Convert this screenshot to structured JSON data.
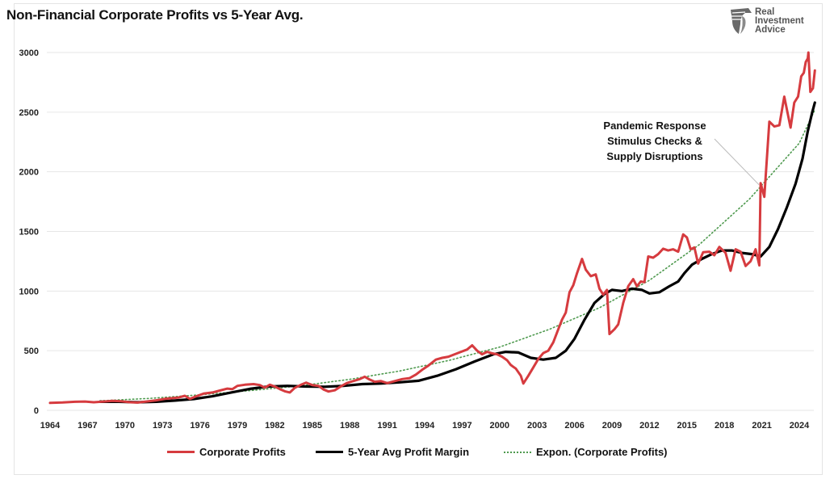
{
  "chart_data": {
    "type": "line",
    "title": "Non-Financial Corporate Profits vs 5-Year Avg.",
    "xlabel": "",
    "ylabel": "",
    "xlim": [
      1963.8,
      2025.4
    ],
    "ylim": [
      0,
      3000
    ],
    "grid": true,
    "legend_position": "bottom",
    "y_ticks": [
      "0",
      "500",
      "1000",
      "1500",
      "2000",
      "2500",
      "3000"
    ],
    "y_tick_values": [
      0,
      500,
      1000,
      1500,
      2000,
      2500,
      3000
    ],
    "x_ticks": [
      "1964",
      "1967",
      "1970",
      "1973",
      "1976",
      "1979",
      "1982",
      "1985",
      "1988",
      "1991",
      "1994",
      "1997",
      "2000",
      "2003",
      "2006",
      "2009",
      "2012",
      "2015",
      "2018",
      "2021",
      "2024"
    ],
    "x_tick_values": [
      1964,
      1967,
      1970,
      1973,
      1976,
      1979,
      1982,
      1985,
      1988,
      1991,
      1994,
      1997,
      2000,
      2003,
      2006,
      2009,
      2012,
      2015,
      2018,
      2021,
      2024
    ],
    "series": [
      {
        "name": "Corporate Profits",
        "color": "#d63b3f",
        "style": "solid",
        "points": [
          [
            1964.0,
            62
          ],
          [
            1965.0,
            66
          ],
          [
            1966.0,
            72
          ],
          [
            1966.8,
            74
          ],
          [
            1967.5,
            68
          ],
          [
            1968.3,
            74
          ],
          [
            1969.0,
            80
          ],
          [
            1969.7,
            76
          ],
          [
            1970.4,
            68
          ],
          [
            1971.0,
            65
          ],
          [
            1971.7,
            74
          ],
          [
            1972.5,
            84
          ],
          [
            1973.2,
            96
          ],
          [
            1973.8,
            102
          ],
          [
            1974.3,
            108
          ],
          [
            1974.8,
            122
          ],
          [
            1975.2,
            96
          ],
          [
            1975.7,
            118
          ],
          [
            1976.3,
            140
          ],
          [
            1977.0,
            150
          ],
          [
            1977.6,
            166
          ],
          [
            1978.2,
            182
          ],
          [
            1978.6,
            178
          ],
          [
            1979.0,
            205
          ],
          [
            1979.6,
            215
          ],
          [
            1980.3,
            220
          ],
          [
            1980.8,
            212
          ],
          [
            1981.2,
            190
          ],
          [
            1981.6,
            215
          ],
          [
            1982.0,
            200
          ],
          [
            1982.4,
            178
          ],
          [
            1982.8,
            160
          ],
          [
            1983.2,
            150
          ],
          [
            1983.6,
            188
          ],
          [
            1984.1,
            215
          ],
          [
            1984.5,
            232
          ],
          [
            1985.0,
            212
          ],
          [
            1985.5,
            205
          ],
          [
            1985.9,
            175
          ],
          [
            1986.3,
            158
          ],
          [
            1986.8,
            168
          ],
          [
            1987.3,
            202
          ],
          [
            1987.8,
            230
          ],
          [
            1988.3,
            246
          ],
          [
            1988.8,
            262
          ],
          [
            1989.2,
            282
          ],
          [
            1989.6,
            258
          ],
          [
            1990.0,
            240
          ],
          [
            1990.5,
            245
          ],
          [
            1991.0,
            228
          ],
          [
            1991.6,
            245
          ],
          [
            1992.2,
            262
          ],
          [
            1992.8,
            270
          ],
          [
            1993.3,
            300
          ],
          [
            1993.8,
            340
          ],
          [
            1994.3,
            375
          ],
          [
            1994.9,
            425
          ],
          [
            1995.4,
            440
          ],
          [
            1995.9,
            450
          ],
          [
            1996.4,
            470
          ],
          [
            1996.9,
            490
          ],
          [
            1997.4,
            510
          ],
          [
            1997.8,
            545
          ],
          [
            1998.2,
            500
          ],
          [
            1998.6,
            470
          ],
          [
            1999.0,
            490
          ],
          [
            1999.4,
            478
          ],
          [
            1999.8,
            470
          ],
          [
            2000.2,
            450
          ],
          [
            2000.6,
            420
          ],
          [
            2000.9,
            380
          ],
          [
            2001.3,
            350
          ],
          [
            2001.7,
            290
          ],
          [
            2001.9,
            225
          ],
          [
            2002.3,
            290
          ],
          [
            2002.7,
            360
          ],
          [
            2003.1,
            430
          ],
          [
            2003.5,
            480
          ],
          [
            2003.9,
            500
          ],
          [
            2004.3,
            570
          ],
          [
            2004.7,
            680
          ],
          [
            2005.0,
            760
          ],
          [
            2005.3,
            820
          ],
          [
            2005.6,
            990
          ],
          [
            2005.9,
            1050
          ],
          [
            2006.2,
            1150
          ],
          [
            2006.6,
            1270
          ],
          [
            2006.9,
            1180
          ],
          [
            2007.3,
            1125
          ],
          [
            2007.7,
            1140
          ],
          [
            2008.0,
            1020
          ],
          [
            2008.3,
            970
          ],
          [
            2008.6,
            1010
          ],
          [
            2008.8,
            640
          ],
          [
            2009.2,
            680
          ],
          [
            2009.5,
            720
          ],
          [
            2009.9,
            900
          ],
          [
            2010.3,
            1040
          ],
          [
            2010.7,
            1100
          ],
          [
            2011.0,
            1040
          ],
          [
            2011.3,
            1080
          ],
          [
            2011.6,
            1075
          ],
          [
            2011.9,
            1290
          ],
          [
            2012.3,
            1280
          ],
          [
            2012.7,
            1310
          ],
          [
            2013.1,
            1355
          ],
          [
            2013.5,
            1340
          ],
          [
            2013.9,
            1350
          ],
          [
            2014.3,
            1330
          ],
          [
            2014.7,
            1475
          ],
          [
            2015.0,
            1450
          ],
          [
            2015.3,
            1350
          ],
          [
            2015.6,
            1365
          ],
          [
            2015.9,
            1230
          ],
          [
            2016.3,
            1325
          ],
          [
            2016.8,
            1330
          ],
          [
            2017.2,
            1300
          ],
          [
            2017.6,
            1370
          ],
          [
            2018.1,
            1320
          ],
          [
            2018.5,
            1170
          ],
          [
            2018.9,
            1350
          ],
          [
            2019.3,
            1330
          ],
          [
            2019.7,
            1210
          ],
          [
            2020.1,
            1250
          ],
          [
            2020.5,
            1350
          ],
          [
            2020.8,
            1215
          ],
          [
            2020.9,
            1905
          ],
          [
            2021.2,
            1790
          ],
          [
            2021.6,
            2420
          ],
          [
            2022.0,
            2380
          ],
          [
            2022.4,
            2390
          ],
          [
            2022.8,
            2630
          ],
          [
            2023.3,
            2370
          ],
          [
            2023.6,
            2580
          ],
          [
            2023.9,
            2630
          ],
          [
            2024.3,
            2800
          ],
          [
            2024.7,
            2830
          ],
          [
            2025.0,
            2920
          ],
          [
            2025.3,
            2950
          ],
          [
            2025.4,
            3000
          ],
          [
            2025.7,
            2670
          ],
          [
            2026.1,
            2700
          ],
          [
            2026.4,
            2850
          ]
        ]
      },
      {
        "name": "5-Year Avg Profit Margin",
        "color": "#000000",
        "style": "solid",
        "points": [
          [
            1968.0,
            72
          ],
          [
            1969.5,
            72
          ],
          [
            1971.0,
            68
          ],
          [
            1972.5,
            72
          ],
          [
            1974.0,
            82
          ],
          [
            1975.5,
            95
          ],
          [
            1977.0,
            118
          ],
          [
            1978.5,
            150
          ],
          [
            1980.0,
            180
          ],
          [
            1981.5,
            200
          ],
          [
            1983.0,
            205
          ],
          [
            1984.5,
            200
          ],
          [
            1986.0,
            198
          ],
          [
            1987.5,
            205
          ],
          [
            1989.0,
            220
          ],
          [
            1990.5,
            225
          ],
          [
            1992.0,
            235
          ],
          [
            1993.5,
            248
          ],
          [
            1995.0,
            290
          ],
          [
            1996.5,
            345
          ],
          [
            1998.0,
            410
          ],
          [
            1999.5,
            470
          ],
          [
            2000.5,
            490
          ],
          [
            2001.5,
            485
          ],
          [
            2002.5,
            440
          ],
          [
            2003.5,
            425
          ],
          [
            2004.5,
            440
          ],
          [
            2005.3,
            500
          ],
          [
            2006.0,
            600
          ],
          [
            2006.8,
            760
          ],
          [
            2007.6,
            900
          ],
          [
            2008.4,
            975
          ],
          [
            2009.0,
            1010
          ],
          [
            2009.8,
            1000
          ],
          [
            2010.6,
            1020
          ],
          [
            2011.4,
            1010
          ],
          [
            2012.0,
            980
          ],
          [
            2012.8,
            990
          ],
          [
            2013.6,
            1040
          ],
          [
            2014.3,
            1080
          ],
          [
            2014.8,
            1150
          ],
          [
            2015.4,
            1220
          ],
          [
            2016.2,
            1270
          ],
          [
            2017.0,
            1310
          ],
          [
            2017.8,
            1340
          ],
          [
            2018.6,
            1340
          ],
          [
            2019.4,
            1320
          ],
          [
            2020.2,
            1310
          ],
          [
            2020.9,
            1290
          ],
          [
            2021.6,
            1370
          ],
          [
            2022.3,
            1520
          ],
          [
            2023.0,
            1700
          ],
          [
            2023.7,
            1900
          ],
          [
            2024.5,
            2110
          ],
          [
            2025.3,
            2340
          ],
          [
            2026.0,
            2500
          ],
          [
            2026.4,
            2580
          ]
        ]
      },
      {
        "name": "Expon. (Corporate Profits)",
        "color": "#4f9a4f",
        "style": "dotted",
        "trend": "exponential",
        "points": [
          [
            1968.0,
            80
          ],
          [
            1972.0,
            100
          ],
          [
            1976.0,
            130
          ],
          [
            1980.0,
            165
          ],
          [
            1984.0,
            205
          ],
          [
            1988.0,
            260
          ],
          [
            1992.0,
            330
          ],
          [
            1996.0,
            420
          ],
          [
            2000.0,
            530
          ],
          [
            2004.0,
            680
          ],
          [
            2008.0,
            860
          ],
          [
            2012.0,
            1090
          ],
          [
            2016.0,
            1390
          ],
          [
            2020.0,
            1770
          ],
          [
            2024.0,
            2240
          ],
          [
            2026.4,
            2520
          ]
        ]
      }
    ],
    "annotations": [
      {
        "lines": [
          "Pandemic Response",
          "Stimulus Checks &",
          "Supply Disruptions"
        ],
        "target": [
          2020.9,
          1905
        ]
      }
    ]
  },
  "branding": {
    "logo_lines": [
      "Real",
      "Investment",
      "Advice"
    ]
  },
  "legend": [
    {
      "label": "Corporate Profits",
      "color": "#d63b3f",
      "style": "solid"
    },
    {
      "label": "5-Year Avg Profit Margin",
      "color": "#000000",
      "style": "solid"
    },
    {
      "label": "Expon. (Corporate Profits)",
      "color": "#4f9a4f",
      "style": "dotted"
    }
  ]
}
